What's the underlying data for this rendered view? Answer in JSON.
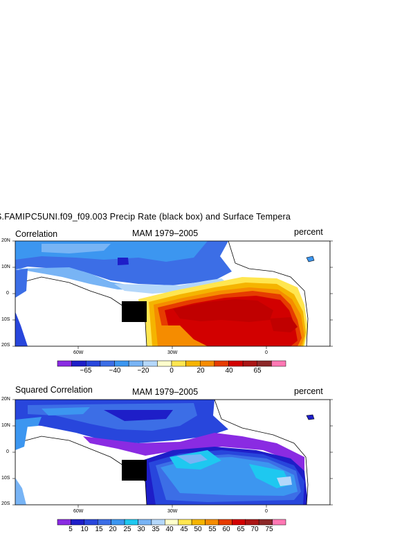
{
  "title": "S.FAMIPC5UNI.f09_f09.003 Precip Rate (black box) and Surface Tempera",
  "panels": [
    {
      "left_label": "Correlation",
      "center_label": "MAM 1979–2005",
      "right_label": "percent",
      "lat_ticks": [
        "20N",
        "10N",
        "0",
        "10S",
        "20S"
      ],
      "lon_ticks": [
        "60W",
        "30W",
        "0"
      ],
      "colorbar": {
        "colors": [
          "#8a2be2",
          "#1e1ec8",
          "#2846dc",
          "#3c6ee6",
          "#3c96f0",
          "#78b4f5",
          "#b4d7fa",
          "#ffffcc",
          "#ffe650",
          "#f5b400",
          "#f58c00",
          "#e63c00",
          "#d20000",
          "#aa1414",
          "#8c2828",
          "#ff78b4"
        ],
        "labels": [
          "−65",
          "−40",
          "−20",
          "0",
          "20",
          "40",
          "65"
        ]
      }
    },
    {
      "left_label": "Squared Correlation",
      "center_label": "MAM 1979–2005",
      "right_label": "percent",
      "lat_ticks": [
        "20N",
        "10N",
        "0",
        "10S",
        "20S"
      ],
      "lon_ticks": [
        "60W",
        "30W",
        "0"
      ],
      "colorbar": {
        "colors": [
          "#8a2be2",
          "#1e1ec8",
          "#2846dc",
          "#3c6ee6",
          "#3c96f0",
          "#1ec8f0",
          "#78b4f5",
          "#b4d7fa",
          "#ffffcc",
          "#ffe650",
          "#f5b400",
          "#f58c00",
          "#e63c00",
          "#d20000",
          "#aa1414",
          "#8c2828",
          "#ff78b4"
        ],
        "labels": [
          "5",
          "10",
          "15",
          "20",
          "25",
          "30",
          "35",
          "40",
          "45",
          "50",
          "55",
          "60",
          "65",
          "70",
          "75"
        ]
      }
    }
  ]
}
